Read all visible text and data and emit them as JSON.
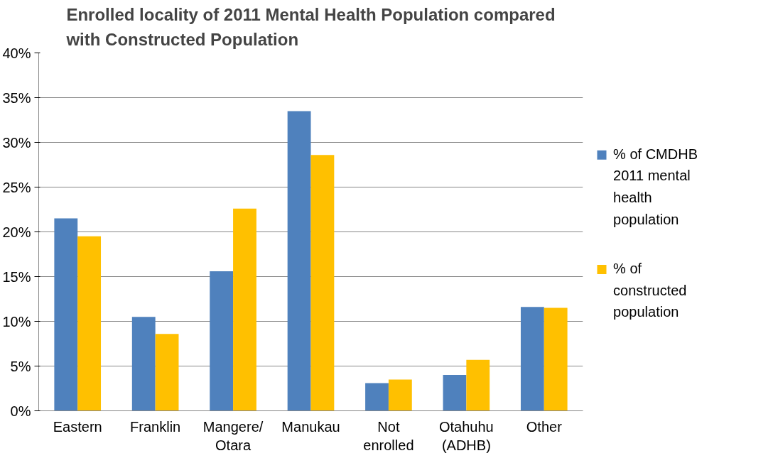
{
  "chart_data": {
    "type": "bar",
    "title": "Enrolled locality of 2011 Mental Health Population compared\nwith Constructed Population",
    "categories": [
      "Eastern",
      "Franklin",
      "Mangere/\nOtara",
      "Manukau",
      "Not\nenrolled",
      "Otahuhu\n(ADHB)",
      "Other"
    ],
    "series": [
      {
        "name": "% of CMDHB 2011 mental health population",
        "color": "#4f81bd",
        "values": [
          21.5,
          10.5,
          15.6,
          33.5,
          3.1,
          4.0,
          11.6
        ]
      },
      {
        "name": "% of constructed population",
        "color": "#ffc000",
        "values": [
          19.5,
          8.6,
          22.6,
          28.6,
          3.5,
          5.7,
          11.5
        ]
      }
    ],
    "ylim": [
      0,
      40
    ],
    "yticks": [
      {
        "value": 0,
        "label": "0%"
      },
      {
        "value": 5,
        "label": "5%"
      },
      {
        "value": 10,
        "label": "10%"
      },
      {
        "value": 15,
        "label": "15%"
      },
      {
        "value": 20,
        "label": "20%"
      },
      {
        "value": 25,
        "label": "25%"
      },
      {
        "value": 30,
        "label": "30%"
      },
      {
        "value": 35,
        "label": "35%"
      },
      {
        "value": 40,
        "label": "40%"
      }
    ],
    "grid": "y",
    "legend": "right"
  }
}
